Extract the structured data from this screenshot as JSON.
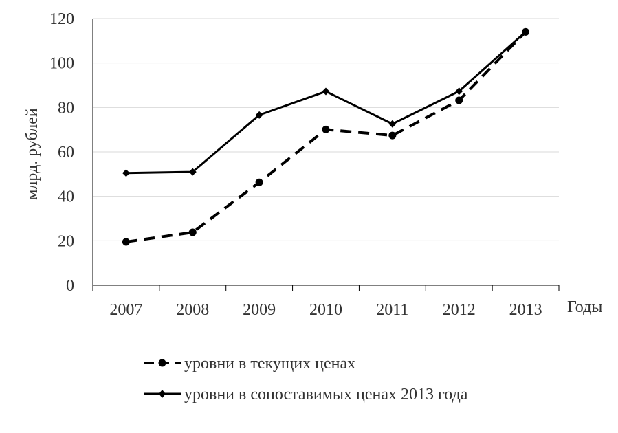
{
  "chart_data": {
    "type": "line",
    "categories": [
      "2007",
      "2008",
      "2009",
      "2010",
      "2011",
      "2012",
      "2013"
    ],
    "series": [
      {
        "name": "уровни в текущих ценах",
        "values": [
          19.5,
          23.8,
          46.3,
          70.1,
          67.4,
          83.2,
          114.0
        ],
        "line_style": "dashed",
        "marker": "circle",
        "color": "#000000"
      },
      {
        "name": "уровни в сопоставимых ценах 2013 года",
        "values": [
          50.5,
          51.0,
          76.6,
          87.2,
          72.6,
          87.3,
          114.0
        ],
        "line_style": "solid",
        "marker": "diamond",
        "color": "#000000"
      }
    ],
    "ylabel": "млрд. рублей",
    "xlabel": "Годы",
    "ylim": [
      0,
      120
    ],
    "yticks": [
      "0",
      "20",
      "40",
      "60",
      "80",
      "100",
      "120"
    ],
    "grid": true,
    "legend_position": "bottom"
  }
}
